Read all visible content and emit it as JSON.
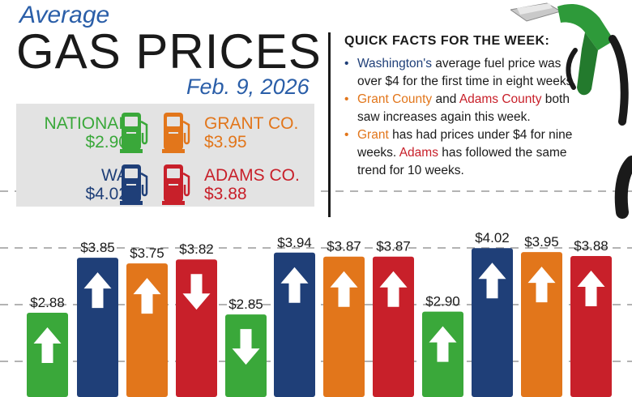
{
  "header": {
    "average": "Average",
    "title": "GAS PRICES",
    "date": "Feb. 9, 2026"
  },
  "price_box": {
    "national_label": "NATIONAL",
    "national_value": "$2.90",
    "grant_label": "GRANT CO.",
    "grant_value": "$3.95",
    "wa_label": "WA",
    "wa_value": "$4.02",
    "adams_label": "ADAMS CO.",
    "adams_value": "$3.88"
  },
  "facts": {
    "title": "QUICK FACTS FOR THE WEEK:",
    "item1_hl": "Washington's",
    "item1_rest": " average fuel price was over $4 for the first time in eight weeks.",
    "item2_hl1": "Grant County",
    "item2_mid": " and ",
    "item2_hl2": "Adams County",
    "item2_rest": " both saw increases again this week.",
    "item3_hl1": "Grant",
    "item3_mid": " has had prices under $4 for nine weeks. ",
    "item3_hl2": "Adams",
    "item3_rest": " has followed the same trend for 10 weeks."
  },
  "colors": {
    "national": "#3aa83a",
    "wa": "#1f3f78",
    "grant": "#e2761b",
    "adams": "#c8202a"
  },
  "chart_data": {
    "type": "bar",
    "grouping": "three weekly groups of four bars (National, WA, Grant Co., Adams Co.)",
    "series_order": [
      "national",
      "wa",
      "grant",
      "adams"
    ],
    "values": [
      2.88,
      3.85,
      3.75,
      3.82,
      2.85,
      3.94,
      3.87,
      3.87,
      2.9,
      4.02,
      3.95,
      3.88
    ],
    "labels": [
      "$2.88",
      "$3.85",
      "$3.75",
      "$3.82",
      "$2.85",
      "$3.94",
      "$3.87",
      "$3.87",
      "$2.90",
      "$4.02",
      "$3.95",
      "$3.88"
    ],
    "series": [
      "national",
      "wa",
      "grant",
      "adams",
      "national",
      "wa",
      "grant",
      "adams",
      "national",
      "wa",
      "grant",
      "adams"
    ],
    "arrows": [
      "up",
      "up",
      "up",
      "down",
      "down",
      "up",
      "up",
      "up",
      "up",
      "up",
      "up",
      "up"
    ],
    "grid": true,
    "gridline_style": "dashed"
  }
}
